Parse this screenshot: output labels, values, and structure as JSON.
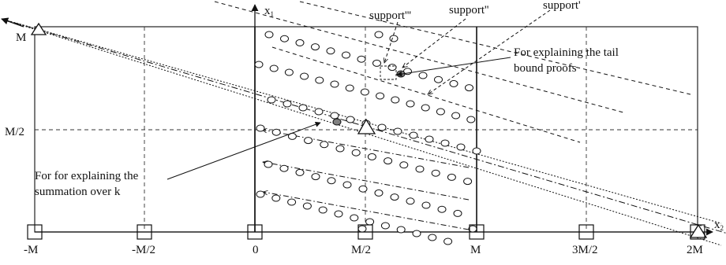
{
  "axes": {
    "x1_label": "x",
    "x1_subscript": "1",
    "x2_label": "x",
    "x2_subscript": "2"
  },
  "x_tick_labels": [
    "-M",
    "-M/2",
    "0",
    "M/2",
    "M",
    "3M/2",
    "2M"
  ],
  "y_tick_labels": [
    "M",
    "M/2"
  ],
  "annotations": {
    "support_triple": "support'''",
    "support_double": "support''",
    "support_single": "support'",
    "tail_line1": "For explaining the tail",
    "tail_line2": "bound proofs",
    "sum_line1": "For for explaining the",
    "sum_line2": "summation over k"
  },
  "colors": {
    "ink": "#111111",
    "grid": "#333333",
    "highlight_fill": "#808080",
    "background": "#ffffff"
  }
}
